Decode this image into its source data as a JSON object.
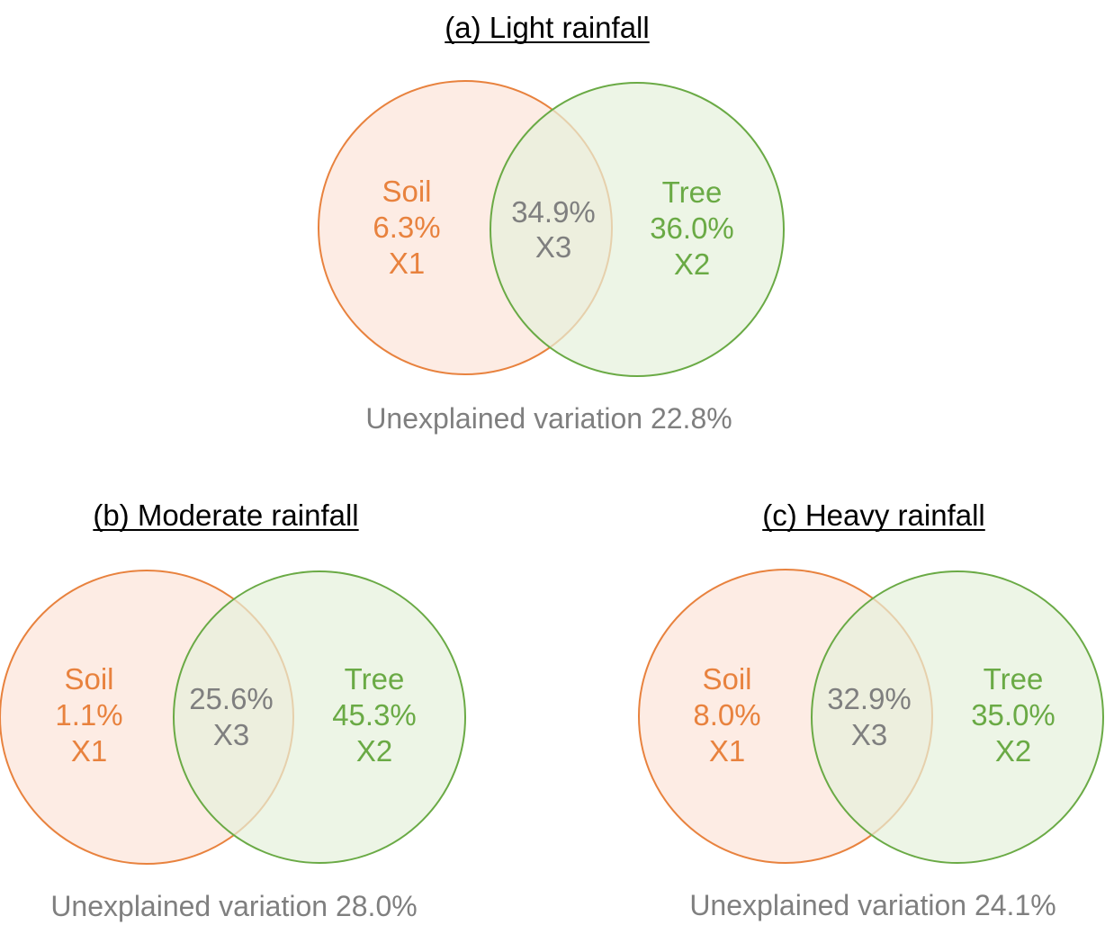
{
  "colors": {
    "soil_stroke": "#e8823e",
    "soil_fill": "#fde9df",
    "soil_text": "#e8823e",
    "tree_stroke": "#6aaa45",
    "tree_fill": "#e6f1dc",
    "tree_text": "#6aaa45",
    "shared_text": "#7f7f7f",
    "unexplained_text": "#7f7f7f",
    "title_text": "#000000"
  },
  "panels": [
    {
      "title": "(a) Light rainfall",
      "soil": {
        "name": "Soil",
        "value": "6.3%",
        "code": "X1"
      },
      "tree": {
        "name": "Tree",
        "value": "36.0%",
        "code": "X2"
      },
      "shared": {
        "value": "34.9%",
        "code": "X3"
      },
      "unexplained": "Unexplained variation 22.8%"
    },
    {
      "title": "(b) Moderate rainfall",
      "soil": {
        "name": "Soil",
        "value": "1.1%",
        "code": "X1"
      },
      "tree": {
        "name": "Tree",
        "value": "45.3%",
        "code": "X2"
      },
      "shared": {
        "value": "25.6%",
        "code": "X3"
      },
      "unexplained": "Unexplained variation 28.0%"
    },
    {
      "title": "(c) Heavy rainfall",
      "soil": {
        "name": "Soil",
        "value": "8.0%",
        "code": "X1"
      },
      "tree": {
        "name": "Tree",
        "value": "35.0%",
        "code": "X2"
      },
      "shared": {
        "value": "32.9%",
        "code": "X3"
      },
      "unexplained": "Unexplained variation 24.1%"
    }
  ]
}
